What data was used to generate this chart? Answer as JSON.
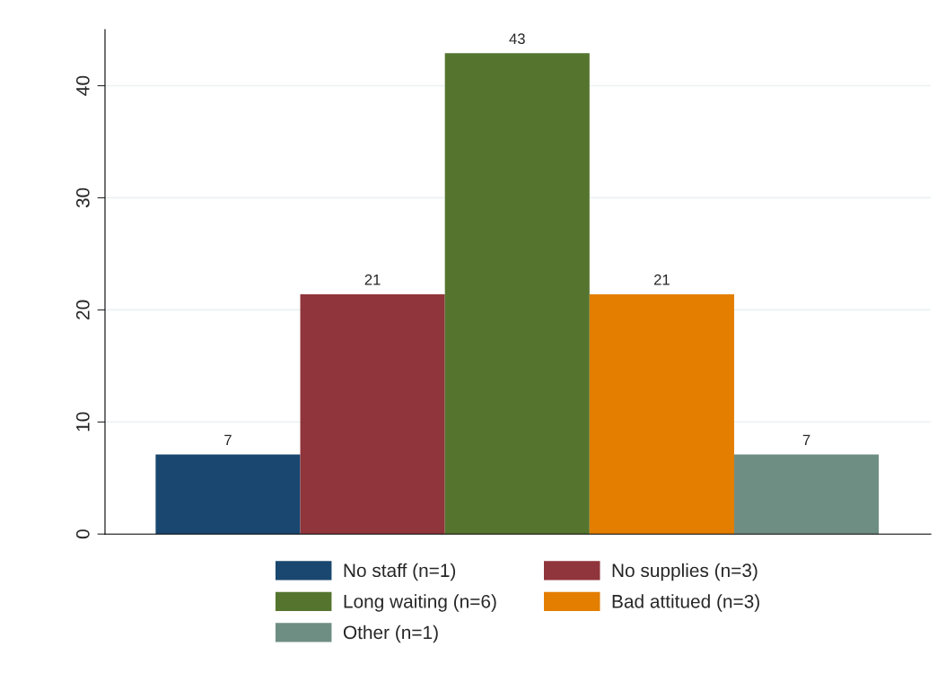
{
  "chart_data": {
    "type": "bar",
    "categories": [
      null,
      null,
      null,
      null,
      null
    ],
    "series": [
      {
        "name": "No staff (n=1)",
        "color": "#1a476f",
        "values": [
          7.1,
          null,
          null,
          null,
          null
        ],
        "value_labels": [
          "7",
          null,
          null,
          null,
          null
        ]
      },
      {
        "name": "No supplies (n=3)",
        "color": "#90353b",
        "values": [
          null,
          21.4,
          null,
          null,
          null
        ],
        "value_labels": [
          null,
          "21",
          null,
          null,
          null
        ]
      },
      {
        "name": "Long waiting (n=6)",
        "color": "#55752f",
        "values": [
          null,
          null,
          42.9,
          null,
          null
        ],
        "value_labels": [
          null,
          null,
          "43",
          null,
          null
        ]
      },
      {
        "name": "Bad attitued (n=3)",
        "color": "#e37e00",
        "values": [
          null,
          null,
          null,
          21.4,
          null
        ],
        "value_labels": [
          null,
          null,
          null,
          "21",
          null
        ]
      },
      {
        "name": "Other (n=1)",
        "color": "#6e8e84",
        "values": [
          null,
          null,
          null,
          null,
          7.1
        ],
        "value_labels": [
          null,
          null,
          null,
          null,
          "7"
        ]
      }
    ],
    "ylim": [
      0,
      45
    ],
    "yticks": [
      0,
      10,
      20,
      30,
      40
    ],
    "grid": "y",
    "legend": "bottom"
  }
}
